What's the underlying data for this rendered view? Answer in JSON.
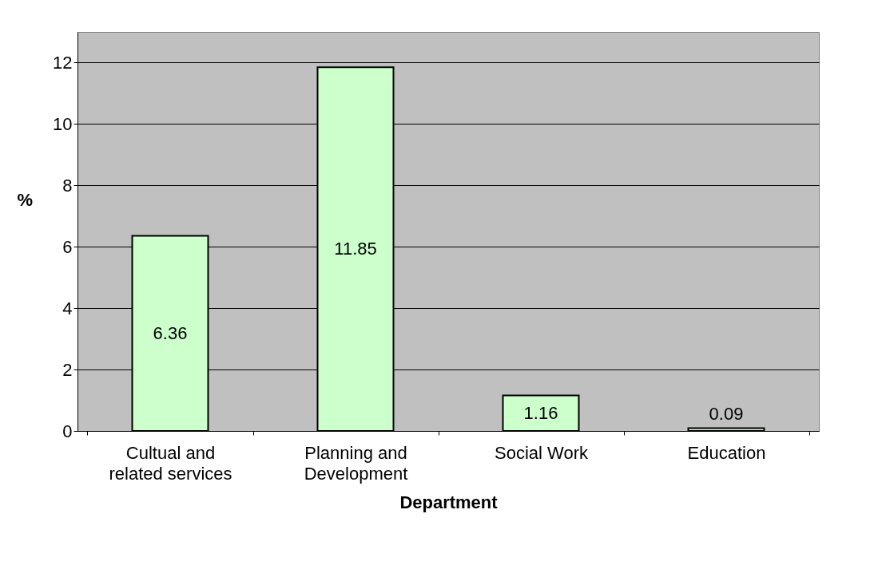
{
  "chart_data": {
    "type": "bar",
    "xlabel": "Department",
    "ylabel": "%",
    "categories": [
      "Cultual and related services",
      "Planning and Development",
      "Social Work",
      "Education"
    ],
    "values": [
      6.36,
      11.85,
      1.16,
      0.09
    ],
    "color": "#ccffcc",
    "ylim": [
      0,
      13
    ],
    "yticks": [
      0,
      2,
      4,
      6,
      8,
      10,
      12
    ],
    "grid": "y",
    "data_labels": true
  }
}
